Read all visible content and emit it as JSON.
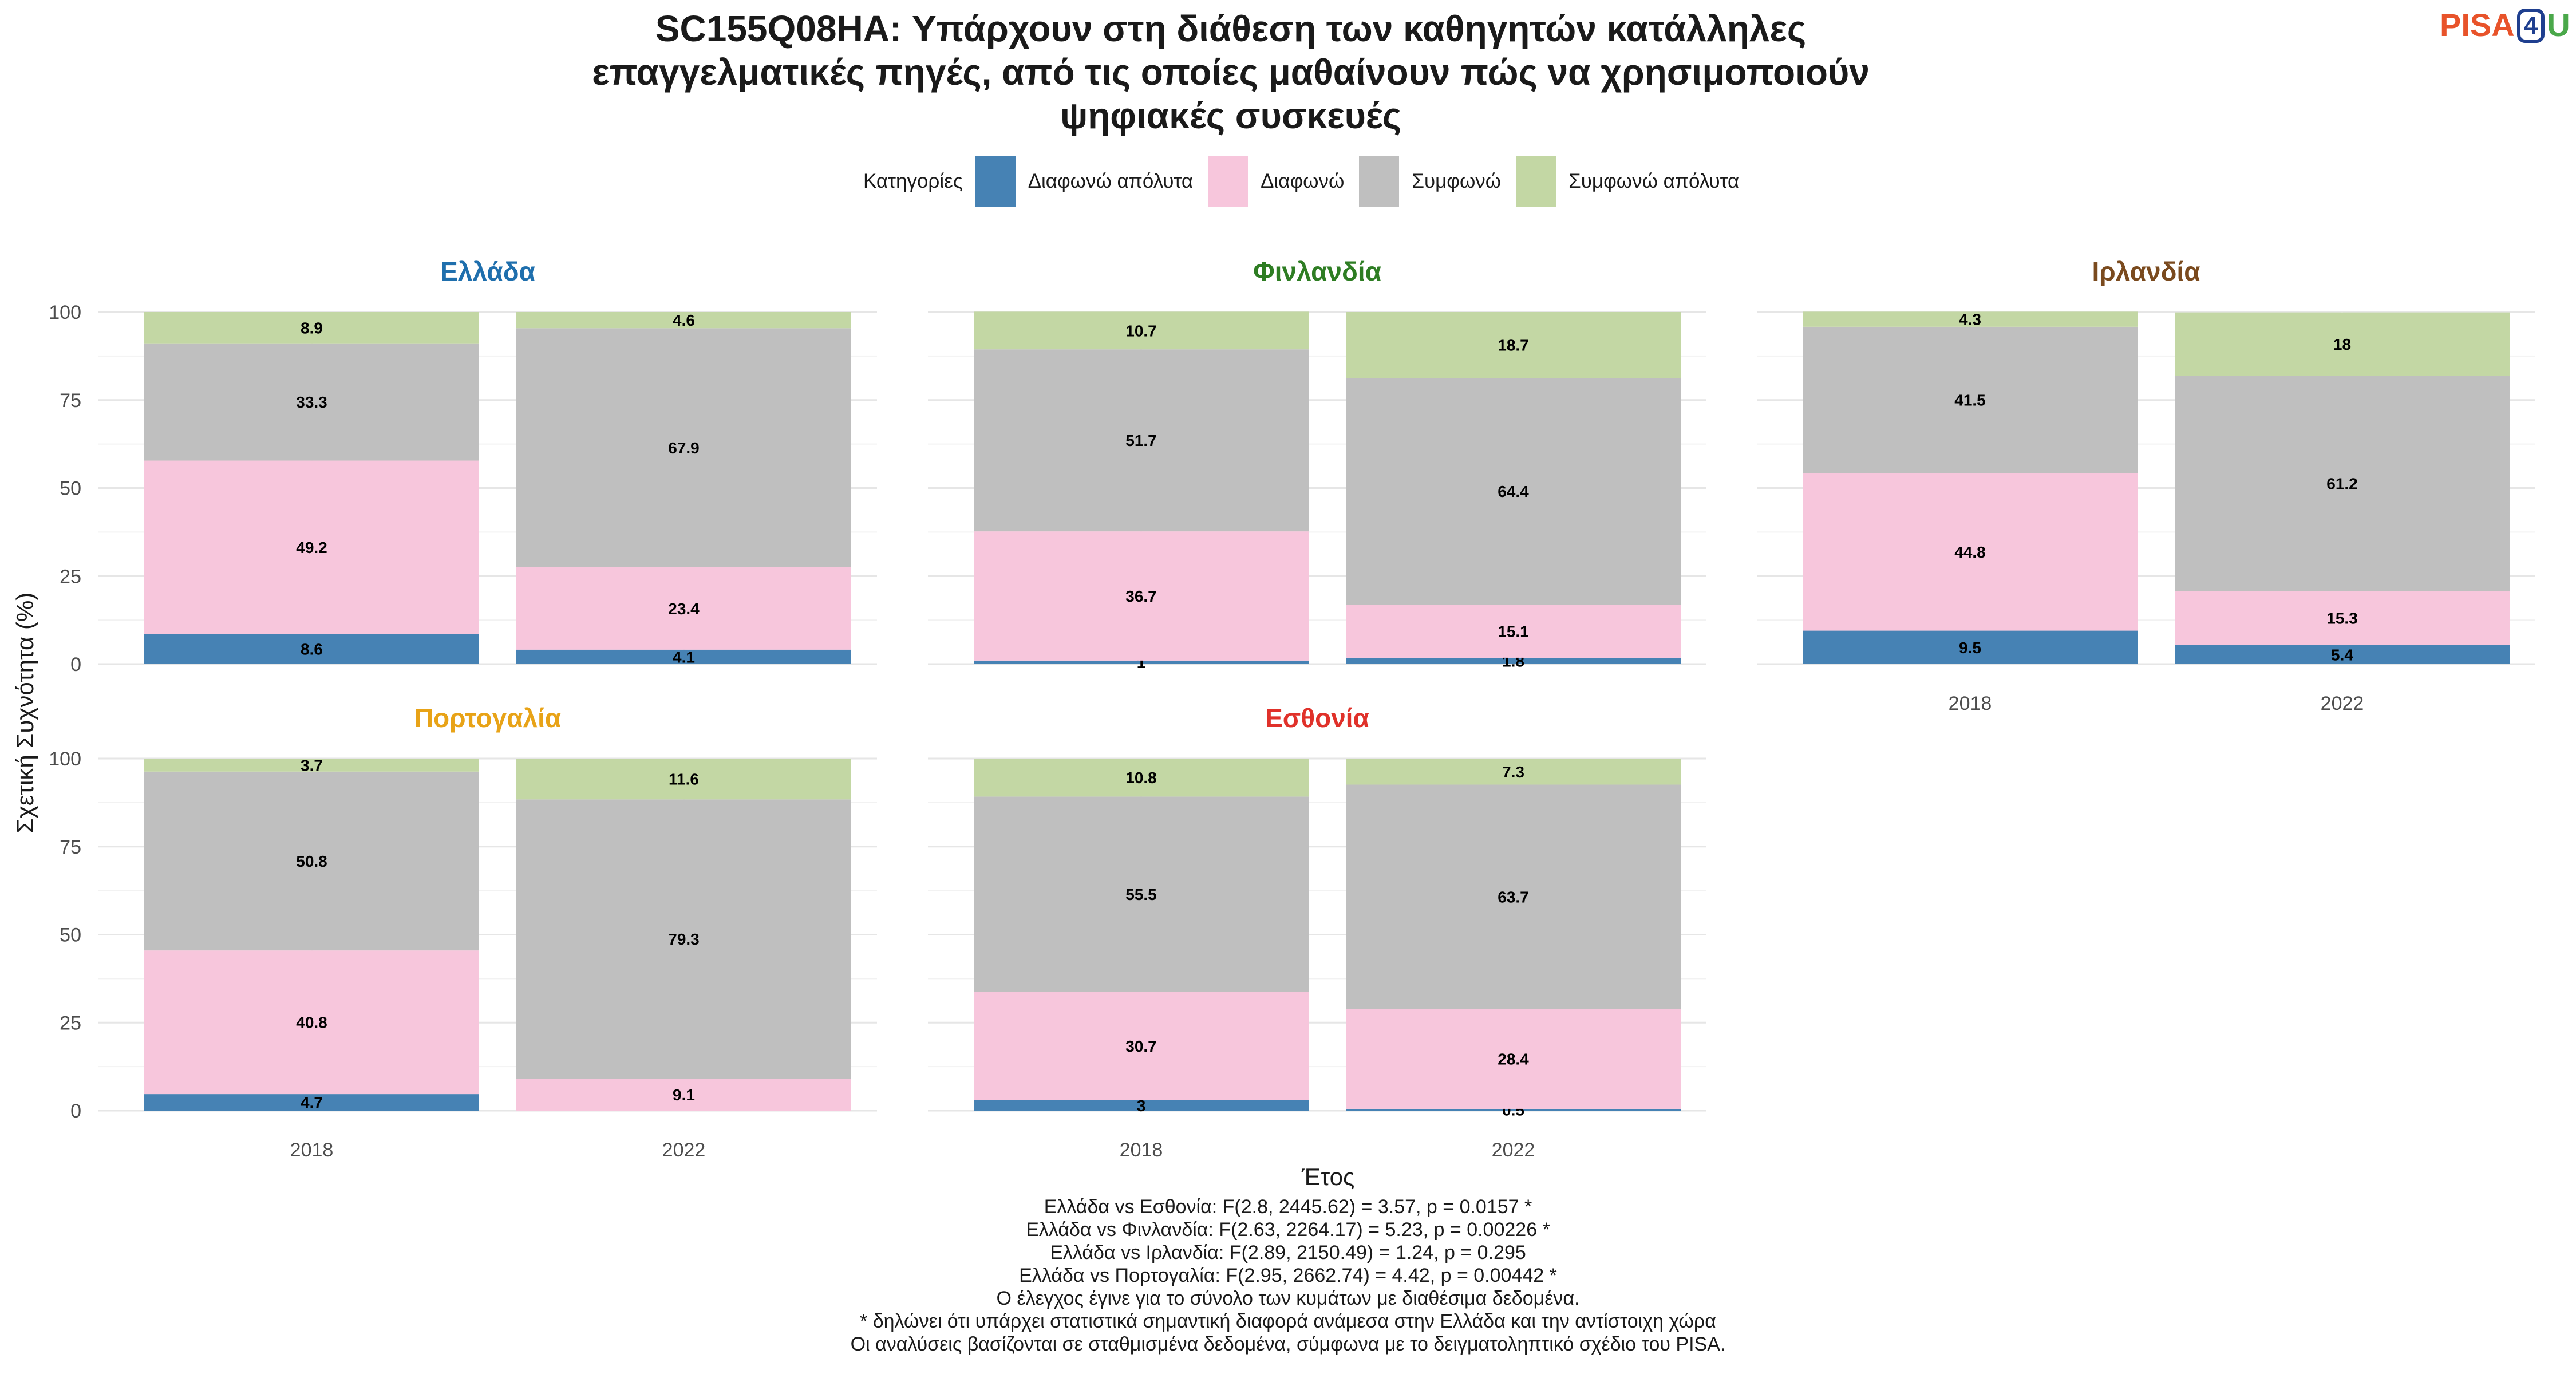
{
  "title_lines": [
    "SC155Q08HA: Υπάρχουν στη διάθεση των καθηγητών κατάλληλες",
    "επαγγελματικές πηγές, από τις οποίες μαθαίνουν πώς να χρησιμοποιούν",
    "ψηφιακές συσκευές"
  ],
  "logo": {
    "pisa": "PISA",
    "four": "4",
    "u": "U"
  },
  "legend": {
    "title": "Κατηγορίες",
    "items": [
      {
        "label": "Διαφωνώ απόλυτα",
        "color": "#4682b4"
      },
      {
        "label": "Διαφωνώ",
        "color": "#f7c6dc"
      },
      {
        "label": "Συμφωνώ",
        "color": "#bfbfbf"
      },
      {
        "label": "Συμφωνώ απόλυτα",
        "color": "#c3d7a4"
      }
    ]
  },
  "chart_data": {
    "type": "bar",
    "stacked": true,
    "xlabel": "Έτος",
    "ylabel": "Σχετική Συχνότητα (%)",
    "ylim": [
      0,
      100
    ],
    "yticks": [
      "0",
      "25",
      "50",
      "75",
      "100"
    ],
    "categories": [
      "2018",
      "2022"
    ],
    "series_names": [
      "Διαφωνώ απόλυτα",
      "Διαφωνώ",
      "Συμφωνώ",
      "Συμφωνώ απόλυτα"
    ],
    "series_colors": [
      "#4682b4",
      "#f7c6dc",
      "#bfbfbf",
      "#c3d7a4"
    ],
    "panels": [
      {
        "country": "Ελλάδα",
        "color": "#1f6fad",
        "bars": [
          {
            "year": "2018",
            "values": [
              8.6,
              49.2,
              33.3,
              8.9
            ],
            "labels": [
              "8.6",
              "49.2",
              "33.3",
              "8.9"
            ]
          },
          {
            "year": "2022",
            "values": [
              4.1,
              23.4,
              67.9,
              4.6
            ],
            "labels": [
              "4.1",
              "23.4",
              "67.9",
              "4.6"
            ]
          }
        ]
      },
      {
        "country": "Φινλανδία",
        "color": "#2e7d23",
        "bars": [
          {
            "year": "2018",
            "values": [
              1.0,
              36.7,
              51.7,
              10.7
            ],
            "labels": [
              "1",
              "36.7",
              "51.7",
              "10.7"
            ]
          },
          {
            "year": "2022",
            "values": [
              1.8,
              15.1,
              64.4,
              18.7
            ],
            "labels": [
              "1.8",
              "15.1",
              "64.4",
              "18.7"
            ]
          }
        ]
      },
      {
        "country": "Ιρλανδία",
        "color": "#7a4a1e",
        "bars": [
          {
            "year": "2018",
            "values": [
              9.5,
              44.8,
              41.5,
              4.3
            ],
            "labels": [
              "9.5",
              "44.8",
              "41.5",
              "4.3"
            ]
          },
          {
            "year": "2022",
            "values": [
              5.4,
              15.3,
              61.2,
              18.0
            ],
            "labels": [
              "5.4",
              "15.3",
              "61.2",
              "18"
            ]
          }
        ]
      },
      {
        "country": "Πορτογαλία",
        "color": "#e8a317",
        "bars": [
          {
            "year": "2018",
            "values": [
              4.7,
              40.8,
              50.8,
              3.7
            ],
            "labels": [
              "4.7",
              "40.8",
              "50.8",
              "3.7"
            ]
          },
          {
            "year": "2022",
            "values": [
              0.0,
              9.1,
              79.3,
              11.6
            ],
            "labels": [
              "",
              "9.1",
              "79.3",
              "11.6"
            ]
          }
        ]
      },
      {
        "country": "Εσθονία",
        "color": "#e0312a",
        "bars": [
          {
            "year": "2018",
            "values": [
              3.0,
              30.7,
              55.5,
              10.8
            ],
            "labels": [
              "3",
              "30.7",
              "55.5",
              "10.8"
            ]
          },
          {
            "year": "2022",
            "values": [
              0.5,
              28.4,
              63.7,
              7.3
            ],
            "labels": [
              "0.5",
              "28.4",
              "63.7",
              "7.3"
            ]
          }
        ]
      }
    ]
  },
  "notes": [
    "Ελλάδα vs Εσθονία: F(2.8, 2445.62) = 3.57, p = 0.0157 *",
    "Ελλάδα vs Φινλανδία: F(2.63, 2264.17) = 5.23, p = 0.00226 *",
    "Ελλάδα vs Ιρλανδία: F(2.89, 2150.49) = 1.24, p = 0.295",
    "Ελλάδα vs Πορτογαλία: F(2.95, 2662.74) = 4.42, p = 0.00442 *",
    "Ο έλεγχος έγινε για το σύνολο των κυμάτων με διαθέσιμα δεδομένα.",
    "* δηλώνει ότι υπάρχει στατιστικά σημαντική διαφορά ανάμεσα στην Ελλάδα και την αντίστοιχη χώρα",
    "Οι αναλύσεις βασίζονται σε σταθμισμένα δεδομένα, σύμφωνα με το δειγματοληπτικό σχέδιο του PISA."
  ]
}
